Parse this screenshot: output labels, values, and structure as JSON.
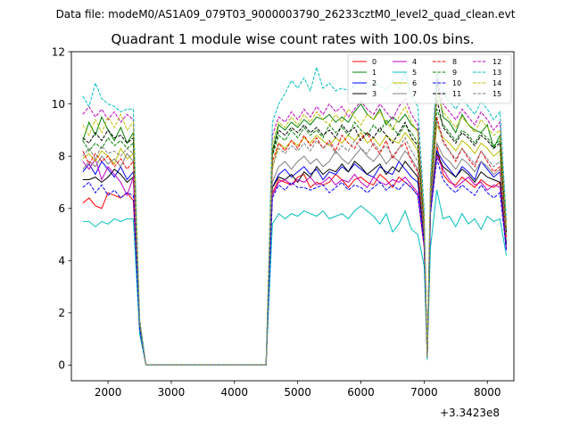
{
  "chart_data": {
    "type": "line",
    "suptitle": "Data file: modeM0/AS1A09_079T03_9000003790_26233cztM0_level2_quad_clean.evt",
    "title": "Quadrant 1 module wise count rates with 100.0s bins.",
    "xlabel": "",
    "ylabel": "",
    "x_offset_label": "+3.3423e8",
    "xlim": [
      1420,
      8420
    ],
    "ylim": [
      -0.6,
      12
    ],
    "xticks": [
      2000,
      3000,
      4000,
      5000,
      6000,
      7000,
      8000
    ],
    "xtick_labels": [
      "2000",
      "3000",
      "4000",
      "5000",
      "6000",
      "7000",
      "8000"
    ],
    "yticks": [
      0,
      2,
      4,
      6,
      8,
      10,
      12
    ],
    "ytick_labels": [
      "0",
      "2",
      "4",
      "6",
      "8",
      "10",
      "12"
    ],
    "grid": false,
    "legend": {
      "position": "top-right",
      "columns": 4
    },
    "x": [
      1600,
      1700,
      1800,
      1900,
      2000,
      2100,
      2200,
      2300,
      2400,
      2500,
      2600,
      2700,
      2800,
      2900,
      3000,
      3100,
      3200,
      3300,
      3400,
      3500,
      3600,
      3700,
      3800,
      3900,
      4000,
      4100,
      4200,
      4300,
      4400,
      4500,
      4600,
      4700,
      4800,
      4900,
      5000,
      5100,
      5200,
      5300,
      5400,
      5500,
      5600,
      5700,
      5800,
      5900,
      6000,
      6100,
      6200,
      6300,
      6400,
      6500,
      6600,
      6700,
      6800,
      6900,
      7000,
      7050,
      7100,
      7200,
      7300,
      7400,
      7500,
      7600,
      7700,
      7800,
      7900,
      8000,
      8100,
      8200,
      8300
    ],
    "series": [
      {
        "name": "0",
        "color": "#ff0000",
        "dash": "solid",
        "values": [
          6.2,
          6.4,
          6.1,
          6.0,
          6.6,
          6.5,
          6.4,
          6.6,
          6.3,
          1.4,
          0,
          0,
          0,
          0,
          0,
          0,
          0,
          0,
          0,
          0,
          0,
          0,
          0,
          0,
          0,
          0,
          0,
          0,
          0,
          0,
          6.6,
          7.1,
          7.0,
          6.9,
          7.2,
          7.3,
          6.8,
          7.0,
          6.9,
          7.0,
          7.3,
          7.1,
          6.8,
          7.1,
          7.2,
          7.0,
          6.9,
          7.3,
          7.1,
          6.8,
          7.2,
          7.0,
          6.8,
          6.5,
          4.5,
          0.3,
          5.8,
          8.4,
          7.3,
          7.0,
          6.9,
          7.2,
          7.0,
          6.8,
          7.1,
          6.9,
          6.8,
          7.0,
          4.5
        ]
      },
      {
        "name": "1",
        "color": "#008000",
        "dash": "solid",
        "values": [
          8.6,
          9.3,
          8.8,
          9.5,
          9.0,
          8.6,
          9.1,
          8.5,
          8.9,
          1.5,
          0,
          0,
          0,
          0,
          0,
          0,
          0,
          0,
          0,
          0,
          0,
          0,
          0,
          0,
          0,
          0,
          0,
          0,
          0,
          0,
          8.2,
          9.2,
          9.0,
          9.3,
          9.1,
          9.4,
          9.2,
          9.5,
          9.4,
          9.6,
          9.3,
          9.5,
          9.3,
          9.7,
          10.0,
          9.6,
          9.4,
          9.8,
          9.2,
          9.5,
          9.3,
          9.6,
          9.2,
          9.0,
          5.5,
          0.3,
          6.5,
          10.9,
          9.5,
          9.3,
          8.9,
          9.6,
          9.2,
          9.0,
          8.9,
          9.2,
          8.3,
          8.8,
          5.2
        ]
      },
      {
        "name": "2",
        "color": "#0000ff",
        "dash": "solid",
        "values": [
          7.4,
          7.7,
          7.3,
          7.8,
          7.5,
          7.2,
          7.6,
          7.1,
          7.4,
          1.4,
          0,
          0,
          0,
          0,
          0,
          0,
          0,
          0,
          0,
          0,
          0,
          0,
          0,
          0,
          0,
          0,
          0,
          0,
          0,
          0,
          6.8,
          7.3,
          7.5,
          7.2,
          7.4,
          7.6,
          7.3,
          7.5,
          7.1,
          7.4,
          7.3,
          7.6,
          7.4,
          7.7,
          7.5,
          7.3,
          7.2,
          7.6,
          7.4,
          7.3,
          7.8,
          7.5,
          7.2,
          7.0,
          4.8,
          0.3,
          6.0,
          8.2,
          7.8,
          7.5,
          7.2,
          7.6,
          7.4,
          7.1,
          7.8,
          7.5,
          7.2,
          7.4,
          4.7
        ]
      },
      {
        "name": "3",
        "color": "#000000",
        "dash": "solid",
        "values": [
          7.1,
          7.1,
          7.2,
          7.0,
          7.2,
          7.5,
          7.3,
          7.0,
          7.2,
          1.5,
          0,
          0,
          0,
          0,
          0,
          0,
          0,
          0,
          0,
          0,
          0,
          0,
          0,
          0,
          0,
          0,
          0,
          0,
          0,
          0,
          6.8,
          7.2,
          7.1,
          7.3,
          7.0,
          7.4,
          7.2,
          7.6,
          7.3,
          7.5,
          7.4,
          7.7,
          7.4,
          7.8,
          7.6,
          7.3,
          7.5,
          7.7,
          7.3,
          7.6,
          7.4,
          7.8,
          7.5,
          7.2,
          4.9,
          0.3,
          6.1,
          8.1,
          7.6,
          7.4,
          7.2,
          7.5,
          7.3,
          7.0,
          7.4,
          7.2,
          7.1,
          7.0,
          4.6
        ]
      },
      {
        "name": "4",
        "color": "#bf00bf",
        "dash": "solid",
        "values": [
          7.8,
          7.5,
          7.9,
          7.1,
          7.6,
          7.3,
          7.0,
          6.5,
          7.2,
          1.5,
          0,
          0,
          0,
          0,
          0,
          0,
          0,
          0,
          0,
          0,
          0,
          0,
          0,
          0,
          0,
          0,
          0,
          0,
          0,
          0,
          6.5,
          7.0,
          7.1,
          6.9,
          7.1,
          7.0,
          7.2,
          6.9,
          7.0,
          7.2,
          6.9,
          7.1,
          7.0,
          7.3,
          7.0,
          6.8,
          7.2,
          7.0,
          6.9,
          7.1,
          7.0,
          7.2,
          6.9,
          6.6,
          4.6,
          0.3,
          5.8,
          8.0,
          7.5,
          7.1,
          6.8,
          7.0,
          7.2,
          6.9,
          7.0,
          6.7,
          6.9,
          6.8,
          4.4
        ]
      },
      {
        "name": "5",
        "color": "#00bfbf",
        "dash": "solid",
        "values": [
          5.5,
          5.5,
          5.3,
          5.5,
          5.4,
          5.6,
          5.5,
          5.6,
          5.6,
          1.2,
          0,
          0,
          0,
          0,
          0,
          0,
          0,
          0,
          0,
          0,
          0,
          0,
          0,
          0,
          0,
          0,
          0,
          0,
          0,
          0,
          5.4,
          5.8,
          5.6,
          5.8,
          5.7,
          5.9,
          5.8,
          5.7,
          5.9,
          5.6,
          5.7,
          5.8,
          5.6,
          5.9,
          6.1,
          5.9,
          5.7,
          5.4,
          5.8,
          5.1,
          5.4,
          5.9,
          5.2,
          5.0,
          3.8,
          0.2,
          4.5,
          6.7,
          5.6,
          5.7,
          5.3,
          5.8,
          5.4,
          5.6,
          5.2,
          5.7,
          5.5,
          5.6,
          4.2
        ]
      },
      {
        "name": "6",
        "color": "#bfbf00",
        "dash": "solid",
        "values": [
          7.9,
          8.1,
          7.8,
          8.2,
          8.0,
          7.7,
          8.3,
          7.9,
          8.1,
          1.6,
          0,
          0,
          0,
          0,
          0,
          0,
          0,
          0,
          0,
          0,
          0,
          0,
          0,
          0,
          0,
          0,
          0,
          0,
          0,
          0,
          7.5,
          8.5,
          8.3,
          8.6,
          8.4,
          8.7,
          8.5,
          8.8,
          8.6,
          8.4,
          8.7,
          8.5,
          8.8,
          8.6,
          8.9,
          8.5,
          8.7,
          8.4,
          8.8,
          8.6,
          8.5,
          8.9,
          8.6,
          8.2,
          5.3,
          0.3,
          6.3,
          9.2,
          8.7,
          8.5,
          8.2,
          8.6,
          8.4,
          8.1,
          8.5,
          8.3,
          8.0,
          8.2,
          5.0
        ]
      },
      {
        "name": "7",
        "color": "#808080",
        "dash": "solid",
        "values": [
          7.5,
          7.8,
          7.6,
          8.0,
          7.7,
          7.9,
          7.6,
          8.1,
          7.8,
          1.5,
          0,
          0,
          0,
          0,
          0,
          0,
          0,
          0,
          0,
          0,
          0,
          0,
          0,
          0,
          0,
          0,
          0,
          0,
          0,
          0,
          7.0,
          7.6,
          7.8,
          7.5,
          7.8,
          8.0,
          7.7,
          7.9,
          7.6,
          7.8,
          8.2,
          7.9,
          7.7,
          8.0,
          8.3,
          8.0,
          7.8,
          8.1,
          7.7,
          8.0,
          7.8,
          8.2,
          7.9,
          7.5,
          5.0,
          0.3,
          6.2,
          8.5,
          8.0,
          7.8,
          7.5,
          7.9,
          7.7,
          7.4,
          7.8,
          7.6,
          7.3,
          7.5,
          4.8
        ]
      },
      {
        "name": "8",
        "color": "#ff0000",
        "dash": "dashed",
        "values": [
          8.2,
          7.7,
          8.1,
          7.8,
          8.0,
          7.6,
          7.9,
          7.5,
          7.8,
          1.5,
          0,
          0,
          0,
          0,
          0,
          0,
          0,
          0,
          0,
          0,
          0,
          0,
          0,
          0,
          0,
          0,
          0,
          0,
          0,
          0,
          7.8,
          8.5,
          8.2,
          8.6,
          8.3,
          8.8,
          8.4,
          8.7,
          8.3,
          8.6,
          8.2,
          8.8,
          8.5,
          8.3,
          8.7,
          8.9,
          8.4,
          8.1,
          8.6,
          7.9,
          8.3,
          8.5,
          7.8,
          7.4,
          5.2,
          0.3,
          6.4,
          9.5,
          8.6,
          8.2,
          7.8,
          8.3,
          7.9,
          7.6,
          8.2,
          7.8,
          7.4,
          7.6,
          4.9
        ]
      },
      {
        "name": "9",
        "color": "#008000",
        "dash": "dashed",
        "values": [
          8.6,
          8.2,
          8.5,
          8.3,
          8.7,
          8.4,
          8.6,
          8.3,
          8.5,
          1.6,
          0,
          0,
          0,
          0,
          0,
          0,
          0,
          0,
          0,
          0,
          0,
          0,
          0,
          0,
          0,
          0,
          0,
          0,
          0,
          0,
          8.0,
          8.8,
          8.6,
          9.0,
          8.7,
          9.1,
          8.8,
          9.0,
          8.7,
          9.2,
          8.9,
          9.1,
          8.8,
          9.3,
          9.0,
          8.8,
          9.2,
          8.9,
          9.4,
          9.1,
          8.8,
          9.2,
          8.9,
          8.5,
          5.4,
          0.3,
          6.5,
          9.8,
          9.2,
          8.9,
          8.6,
          9.0,
          8.8,
          8.5,
          8.9,
          8.7,
          8.4,
          8.6,
          5.1
        ]
      },
      {
        "name": "10",
        "color": "#0000ff",
        "dash": "dashed",
        "values": [
          6.8,
          7.0,
          6.6,
          6.9,
          6.5,
          6.7,
          6.4,
          6.6,
          6.5,
          1.4,
          0,
          0,
          0,
          0,
          0,
          0,
          0,
          0,
          0,
          0,
          0,
          0,
          0,
          0,
          0,
          0,
          0,
          0,
          0,
          0,
          6.4,
          6.9,
          6.7,
          7.0,
          6.8,
          6.8,
          6.7,
          6.8,
          6.9,
          6.6,
          6.8,
          7.0,
          6.7,
          6.9,
          6.8,
          6.6,
          6.8,
          7.0,
          6.7,
          6.9,
          6.7,
          7.0,
          6.8,
          6.5,
          4.6,
          0.3,
          5.8,
          7.9,
          7.1,
          6.8,
          6.6,
          6.9,
          6.7,
          6.5,
          6.9,
          6.6,
          6.4,
          6.6,
          4.4
        ]
      },
      {
        "name": "11",
        "color": "#000000",
        "dash": "dashed",
        "values": [
          8.7,
          8.5,
          8.9,
          8.6,
          9.0,
          8.7,
          8.8,
          8.5,
          8.7,
          1.6,
          0,
          0,
          0,
          0,
          0,
          0,
          0,
          0,
          0,
          0,
          0,
          0,
          0,
          0,
          0,
          0,
          0,
          0,
          0,
          0,
          8.1,
          9.0,
          8.8,
          9.1,
          8.9,
          9.2,
          8.9,
          9.1,
          8.8,
          9.0,
          8.7,
          9.2,
          8.9,
          9.1,
          8.6,
          8.9,
          8.7,
          9.1,
          8.8,
          8.5,
          8.9,
          9.3,
          8.7,
          8.4,
          5.4,
          0.3,
          6.6,
          10.2,
          9.1,
          8.8,
          8.5,
          8.9,
          8.7,
          8.4,
          8.8,
          8.6,
          8.3,
          8.5,
          5.1
        ]
      },
      {
        "name": "12",
        "color": "#bf00bf",
        "dash": "dashed",
        "values": [
          9.6,
          9.9,
          9.5,
          9.8,
          9.4,
          9.7,
          9.3,
          9.6,
          9.4,
          1.7,
          0,
          0,
          0,
          0,
          0,
          0,
          0,
          0,
          0,
          0,
          0,
          0,
          0,
          0,
          0,
          0,
          0,
          0,
          0,
          0,
          8.8,
          9.5,
          9.3,
          9.7,
          9.4,
          9.8,
          9.5,
          9.9,
          9.6,
          10.0,
          9.7,
          9.9,
          9.5,
          9.8,
          10.1,
          9.8,
          9.6,
          10.0,
          9.7,
          9.4,
          9.9,
          10.2,
          9.6,
          9.2,
          5.8,
          0.3,
          7.0,
          11.0,
          10.0,
          9.7,
          9.4,
          9.8,
          9.5,
          9.2,
          9.7,
          9.4,
          9.0,
          9.3,
          5.4
        ]
      },
      {
        "name": "13",
        "color": "#00bfbf",
        "dash": "dashed",
        "values": [
          10.3,
          9.9,
          10.8,
          10.2,
          10.0,
          9.9,
          9.7,
          9.8,
          9.8,
          1.8,
          0,
          0,
          0,
          0,
          0,
          0,
          0,
          0,
          0,
          0,
          0,
          0,
          0,
          0,
          0,
          0,
          0,
          0,
          0,
          0,
          9.3,
          10.0,
          10.4,
          10.9,
          10.6,
          11.0,
          10.5,
          11.4,
          10.6,
          10.8,
          10.5,
          10.6,
          10.5,
          10.7,
          10.9,
          10.6,
          10.8,
          10.7,
          10.5,
          10.9,
          10.6,
          11.2,
          10.3,
          9.9,
          6.0,
          0.3,
          7.2,
          11.2,
          10.4,
          10.1,
          9.8,
          10.2,
          9.9,
          9.6,
          10.1,
          9.8,
          9.4,
          9.7,
          5.6
        ]
      },
      {
        "name": "14",
        "color": "#bfbf00",
        "dash": "dashed",
        "values": [
          9.2,
          8.8,
          9.4,
          8.9,
          9.5,
          9.1,
          9.6,
          9.0,
          9.3,
          1.7,
          0,
          0,
          0,
          0,
          0,
          0,
          0,
          0,
          0,
          0,
          0,
          0,
          0,
          0,
          0,
          0,
          0,
          0,
          0,
          0,
          8.5,
          9.3,
          9.1,
          9.5,
          9.2,
          9.6,
          9.3,
          9.7,
          9.4,
          9.2,
          9.6,
          9.3,
          9.8,
          9.5,
          9.2,
          9.6,
          9.4,
          9.7,
          9.3,
          9.0,
          9.5,
          9.9,
          9.3,
          8.9,
          5.6,
          0.3,
          6.8,
          10.4,
          9.7,
          9.4,
          9.1,
          9.5,
          9.2,
          8.9,
          9.4,
          9.1,
          8.8,
          9.0,
          5.3
        ]
      },
      {
        "name": "15",
        "color": "#808080",
        "dash": "dashed",
        "values": [
          8.0,
          8.3,
          7.9,
          8.4,
          8.1,
          8.2,
          8.0,
          8.3,
          8.1,
          1.6,
          0,
          0,
          0,
          0,
          0,
          0,
          0,
          0,
          0,
          0,
          0,
          0,
          0,
          0,
          0,
          0,
          0,
          0,
          0,
          0,
          7.6,
          8.3,
          8.1,
          8.4,
          8.2,
          8.5,
          8.2,
          8.6,
          8.3,
          8.5,
          8.1,
          8.4,
          8.2,
          8.6,
          8.3,
          8.1,
          8.5,
          8.2,
          8.4,
          8.0,
          8.3,
          8.7,
          8.2,
          7.8,
          5.2,
          0.3,
          6.4,
          9.4,
          8.5,
          8.2,
          7.9,
          8.3,
          8.0,
          7.7,
          8.2,
          7.9,
          7.6,
          7.8,
          5.0
        ]
      }
    ]
  }
}
